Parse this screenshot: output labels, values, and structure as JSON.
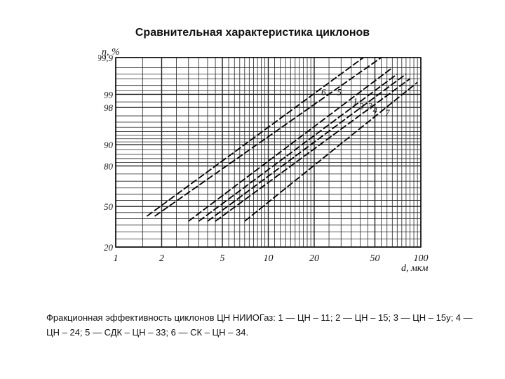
{
  "title": "Сравнительная характеристика циклонов",
  "caption": "Фракционная эффективность циклонов ЦН НИИОГаз: 1 — ЦН – 11; 2 — ЦН – 15; 3 — ЦН – 15у; 4 — ЦН – 24; 5 — СДК – ЦН – 33; 6 — СК – ЦН – 34.",
  "chart_data": {
    "type": "line",
    "xlabel": "d, мкм",
    "ylabel": "η, %",
    "x_scale": "log",
    "y_scale": "probability",
    "xlim": [
      1,
      100
    ],
    "ylim": [
      20,
      99.9
    ],
    "x_ticks": [
      "1",
      "2",
      "5",
      "10",
      "20",
      "50",
      "100"
    ],
    "y_ticks": [
      "20",
      "50",
      "80",
      "90",
      "98",
      "99",
      "99,9"
    ],
    "grid": true,
    "series": [
      {
        "name": "6",
        "x": [
          1.6,
          42
        ],
        "y": [
          42,
          99.9
        ]
      },
      {
        "name": "5",
        "x": [
          1.8,
          55
        ],
        "y": [
          42,
          99.9
        ]
      },
      {
        "name": "1",
        "x": [
          3.0,
          65
        ],
        "y": [
          38,
          99.8
        ]
      },
      {
        "name": "2",
        "x": [
          3.5,
          70
        ],
        "y": [
          38,
          99.7
        ]
      },
      {
        "name": "3",
        "x": [
          4.0,
          80
        ],
        "y": [
          38,
          99.7
        ]
      },
      {
        "name": "4",
        "x": [
          4.5,
          85
        ],
        "y": [
          38,
          99.6
        ]
      },
      {
        "name": "7",
        "x": [
          7.0,
          95
        ],
        "y": [
          38,
          99.5
        ]
      }
    ]
  }
}
